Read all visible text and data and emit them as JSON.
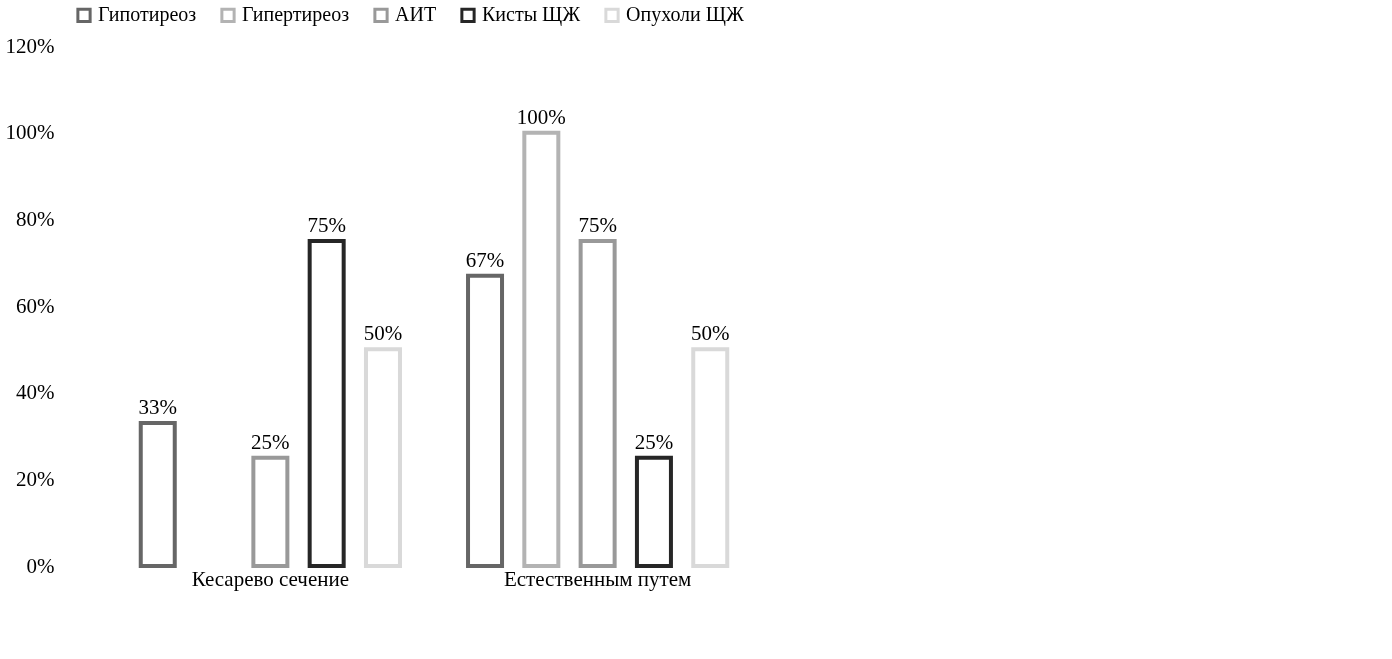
{
  "chart_data": {
    "type": "bar",
    "categories": [
      "Кесарево сечение",
      "Естественным путем"
    ],
    "series": [
      {
        "name": "Гипотиреоз",
        "color": "#666666",
        "values": [
          33,
          67
        ],
        "value_labels": [
          "33%",
          "67%"
        ]
      },
      {
        "name": "Гипертиреоз",
        "color": "#b3b3b3",
        "values": [
          null,
          100
        ],
        "value_labels": [
          null,
          "100%"
        ]
      },
      {
        "name": "АИТ",
        "color": "#999999",
        "values": [
          25,
          75
        ],
        "value_labels": [
          "25%",
          "75%"
        ]
      },
      {
        "name": "Кисты ЩЖ",
        "color": "#262626",
        "values": [
          75,
          25
        ],
        "value_labels": [
          "75%",
          "25%"
        ]
      },
      {
        "name": "Опухоли ЩЖ",
        "color": "#d9d9d9",
        "values": [
          50,
          50
        ],
        "value_labels": [
          "50%",
          "50%"
        ]
      }
    ],
    "ylim": [
      0,
      120
    ],
    "yticks": [
      {
        "value": 0,
        "label": "0%"
      },
      {
        "value": 20,
        "label": "20%"
      },
      {
        "value": 40,
        "label": "40%"
      },
      {
        "value": 60,
        "label": "60%"
      },
      {
        "value": 80,
        "label": "80%"
      },
      {
        "value": 100,
        "label": "100%"
      },
      {
        "value": 120,
        "label": "120%"
      }
    ],
    "grid": false,
    "legend": "top"
  }
}
